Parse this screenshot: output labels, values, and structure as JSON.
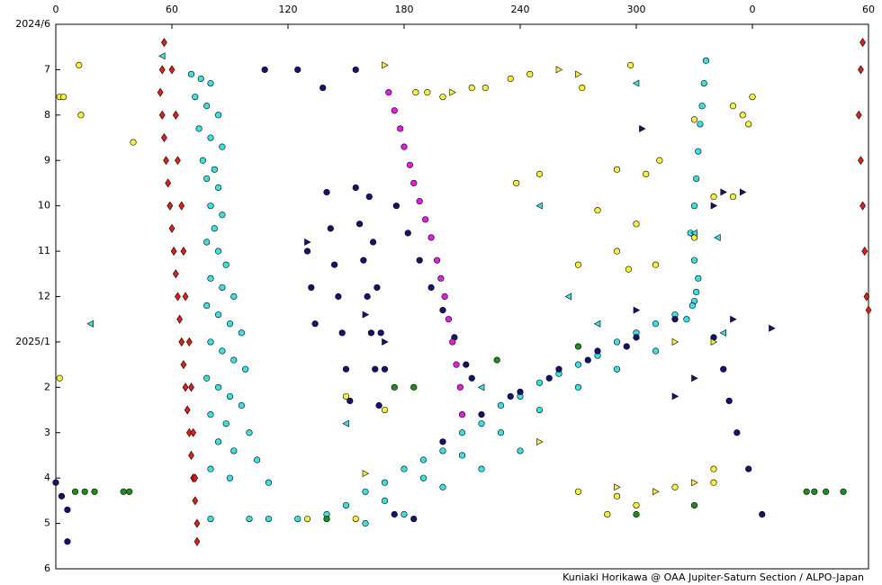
{
  "chart_data": {
    "type": "scatter",
    "credit": "Kuniaki Horikawa @ OAA Jupiter-Saturn Section / ALPO-Japan",
    "xlim": [
      0,
      420
    ],
    "xticks": [
      0,
      60,
      120,
      180,
      240,
      300,
      {
        "value": 360,
        "label": "0"
      },
      {
        "value": 420,
        "label": "60"
      }
    ],
    "ylim": [
      0,
      12
    ],
    "y_inverted": true,
    "yticks": [
      {
        "value": 0,
        "label": "2024/6"
      },
      {
        "value": 1,
        "label": "7"
      },
      {
        "value": 2,
        "label": "8"
      },
      {
        "value": 3,
        "label": "9"
      },
      {
        "value": 4,
        "label": "10"
      },
      {
        "value": 5,
        "label": "11"
      },
      {
        "value": 6,
        "label": "12"
      },
      {
        "value": 7,
        "label": "2025/1"
      },
      {
        "value": 8,
        "label": "2"
      },
      {
        "value": 9,
        "label": "3"
      },
      {
        "value": 10,
        "label": "4"
      },
      {
        "value": 11,
        "label": "5"
      },
      {
        "value": 12,
        "label": "6"
      }
    ],
    "series": [
      {
        "color": "#e0201a",
        "marker": "diamond",
        "x": [
          56,
          55,
          54,
          55,
          56,
          57,
          58,
          59,
          60,
          61,
          62,
          63,
          64,
          65,
          66,
          67,
          68,
          69,
          70,
          71,
          72,
          73,
          73,
          60,
          62,
          63,
          65,
          66,
          67,
          69,
          70,
          71,
          72,
          417,
          416,
          415,
          416,
          417,
          418,
          419,
          420
        ],
        "values": [
          0.4,
          1,
          1.5,
          2,
          2.5,
          3,
          3.5,
          4,
          4.5,
          5,
          5.5,
          6,
          6.5,
          7,
          7.5,
          8,
          8.5,
          9,
          9.5,
          10,
          10.5,
          11,
          11.4,
          1,
          2,
          3,
          4,
          5,
          6,
          7,
          8,
          9,
          10,
          0.4,
          1,
          2,
          3,
          4,
          5,
          6,
          6.3
        ]
      },
      {
        "color": "#3ce0e0",
        "marker": "circle",
        "x": [
          70,
          75,
          80,
          72,
          78,
          84,
          74,
          80,
          86,
          76,
          82,
          78,
          84,
          80,
          86,
          82,
          78,
          84,
          88,
          80,
          86,
          92,
          78,
          84,
          90,
          96,
          80,
          86,
          92,
          98,
          78,
          84,
          90,
          96,
          80,
          88,
          100,
          84,
          92,
          104,
          80,
          90,
          110,
          100,
          110,
          125,
          80,
          150,
          160,
          170,
          180,
          190,
          200,
          210,
          220,
          230,
          240,
          250,
          260,
          270,
          280,
          290,
          300,
          310,
          320,
          330,
          170,
          190,
          210,
          230,
          250,
          270,
          290,
          310,
          200,
          220,
          240,
          180,
          160,
          140,
          336,
          335,
          334,
          333,
          332,
          331,
          330,
          328,
          330,
          332,
          331,
          329,
          326
        ],
        "values": [
          1.1,
          1.2,
          1.3,
          1.6,
          1.8,
          2,
          2.3,
          2.5,
          2.7,
          3,
          3.2,
          3.4,
          3.6,
          4,
          4.2,
          4.5,
          4.8,
          5,
          5.3,
          5.6,
          5.8,
          6,
          6.2,
          6.4,
          6.6,
          6.8,
          7,
          7.2,
          7.4,
          7.6,
          7.8,
          8,
          8.2,
          8.4,
          8.6,
          8.8,
          9,
          9.2,
          9.4,
          9.6,
          9.8,
          10,
          10.1,
          10.9,
          10.9,
          10.9,
          10.9,
          10.6,
          10.3,
          10.1,
          9.8,
          9.6,
          9.4,
          9,
          8.8,
          8.4,
          8.2,
          7.9,
          7.7,
          7.5,
          7.3,
          7,
          6.8,
          6.6,
          6.4,
          6.1,
          10.5,
          10,
          9.5,
          9,
          8.5,
          8,
          7.6,
          7.2,
          10.2,
          9.8,
          9.4,
          10.8,
          11,
          10.8,
          0.8,
          1.3,
          1.8,
          2.2,
          2.8,
          3.4,
          4,
          4.6,
          5.2,
          5.6,
          5.9,
          6.2,
          6.5
        ]
      },
      {
        "color": "#14146e",
        "marker": "circle",
        "x": [
          140,
          142,
          144,
          146,
          148,
          150,
          152,
          155,
          157,
          159,
          161,
          163,
          165,
          167,
          162,
          164,
          166,
          168,
          170,
          130,
          132,
          134,
          176,
          182,
          188,
          194,
          200,
          206,
          212,
          200,
          220,
          240,
          260,
          280,
          300,
          320,
          215,
          235,
          255,
          275,
          295,
          340,
          345,
          348,
          352,
          358,
          365,
          0,
          3,
          6,
          6,
          108,
          125,
          138,
          155,
          175,
          185
        ],
        "values": [
          3.7,
          4.5,
          5.3,
          6,
          6.8,
          7.6,
          8.3,
          3.6,
          4.4,
          5.2,
          6,
          6.8,
          7.6,
          8.4,
          3.8,
          4.8,
          5.8,
          6.8,
          7.6,
          5,
          5.8,
          6.6,
          4,
          4.6,
          5.2,
          5.8,
          6.3,
          6.9,
          7.5,
          9.2,
          8.6,
          8.1,
          7.6,
          7.2,
          6.9,
          6.5,
          7.8,
          8.2,
          7.8,
          7.4,
          7.1,
          6.9,
          7.6,
          8.3,
          9,
          9.8,
          10.8,
          10.1,
          10.4,
          10.7,
          11.4,
          1,
          1,
          1.4,
          1,
          10.8,
          10.9
        ]
      },
      {
        "color": "#e020e0",
        "marker": "circle",
        "x": [
          172,
          175,
          178,
          180,
          183,
          185,
          188,
          191,
          194,
          197,
          199,
          201,
          203,
          205,
          207,
          209,
          210
        ],
        "values": [
          1.5,
          1.9,
          2.3,
          2.7,
          3.1,
          3.5,
          3.9,
          4.3,
          4.7,
          5.2,
          5.6,
          6,
          6.5,
          7,
          7.5,
          8,
          8.6
        ]
      },
      {
        "color": "#f5f03c",
        "marker": "circle",
        "x": [
          2,
          4,
          12,
          13,
          40,
          186,
          192,
          200,
          215,
          222,
          235,
          245,
          238,
          250,
          290,
          305,
          312,
          272,
          297,
          350,
          355,
          358,
          330,
          300,
          280,
          270,
          290,
          296,
          310,
          330,
          340,
          350,
          360,
          2,
          340,
          270,
          290,
          300,
          320,
          340,
          285,
          155,
          130,
          150,
          170
        ],
        "values": [
          1.6,
          1.6,
          0.9,
          2,
          2.6,
          1.5,
          1.5,
          1.6,
          1.4,
          1.4,
          1.2,
          1.1,
          3.5,
          3.3,
          3.2,
          3.3,
          3,
          1.4,
          0.9,
          1.8,
          2,
          2.2,
          2.1,
          4.4,
          4.1,
          5.3,
          5,
          5.4,
          5.3,
          4.7,
          3.8,
          3.8,
          1.6,
          7.8,
          9.8,
          10.3,
          10.4,
          10.6,
          10.2,
          10.1,
          10.8,
          10.9,
          10.9,
          8.2,
          8.5
        ]
      },
      {
        "color": "#1e8c1e",
        "marker": "circle",
        "x": [
          10,
          15,
          20,
          35,
          38,
          388,
          392,
          398,
          407,
          228,
          270,
          175,
          185,
          140,
          300,
          330
        ],
        "values": [
          10.3,
          10.3,
          10.3,
          10.3,
          10.3,
          10.3,
          10.3,
          10.3,
          10.3,
          7.4,
          7.1,
          8,
          8,
          10.9,
          10.8,
          10.6
        ]
      },
      {
        "color": "#14146e",
        "marker": "triangle-right",
        "x": [
          300,
          320,
          330,
          340,
          345,
          355,
          303,
          130,
          160,
          170,
          350,
          370
        ],
        "values": [
          6.3,
          8.2,
          7.8,
          4,
          3.7,
          3.7,
          2.3,
          4.8,
          6.4,
          7,
          6.5,
          6.7
        ]
      },
      {
        "color": "#3ce0e0",
        "marker": "triangle-left",
        "x": [
          55,
          250,
          265,
          280,
          330,
          342,
          18,
          220,
          345,
          150,
          300
        ],
        "values": [
          0.7,
          4,
          6,
          6.6,
          4.6,
          4.7,
          6.6,
          8,
          6.8,
          8.8,
          1.3
        ]
      },
      {
        "color": "#f5f03c",
        "marker": "triangle-right",
        "x": [
          170,
          205,
          260,
          270,
          320,
          340,
          290,
          310,
          330,
          250,
          160
        ],
        "values": [
          0.9,
          1.5,
          1,
          1.1,
          7,
          7,
          10.2,
          10.3,
          10.1,
          9.2,
          9.9
        ]
      }
    ]
  }
}
